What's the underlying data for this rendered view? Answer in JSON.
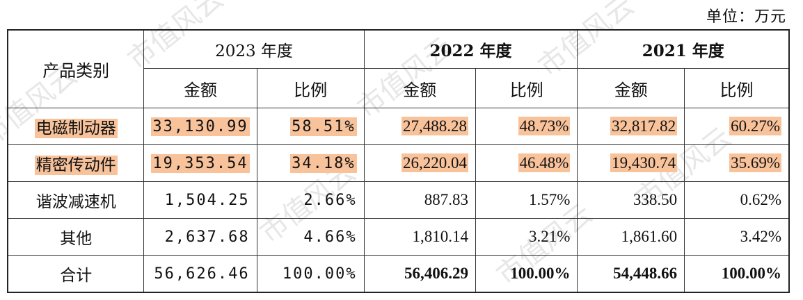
{
  "unit_label": "单位：万元",
  "watermark": "市值风云",
  "headers": {
    "category": "产品类别",
    "years": [
      "2023 年度",
      "2022 年度",
      "2021 年度"
    ],
    "amount": "金额",
    "ratio": "比例"
  },
  "rows": [
    {
      "category": "电磁制动器",
      "y2023_amount": "33,130.99",
      "y2023_ratio": "58.51%",
      "y2022_amount": "27,488.28",
      "y2022_ratio": "48.73%",
      "y2021_amount": "32,817.82",
      "y2021_ratio": "60.27%"
    },
    {
      "category": "精密传动件",
      "y2023_amount": "19,353.54",
      "y2023_ratio": "34.18%",
      "y2022_amount": "26,220.04",
      "y2022_ratio": "46.48%",
      "y2021_amount": "19,430.74",
      "y2021_ratio": "35.69%"
    },
    {
      "category": "谐波减速机",
      "y2023_amount": "1,504.25",
      "y2023_ratio": "2.66%",
      "y2022_amount": "887.83",
      "y2022_ratio": "1.57%",
      "y2021_amount": "338.50",
      "y2021_ratio": "0.62%"
    },
    {
      "category": "其他",
      "y2023_amount": "2,637.68",
      "y2023_ratio": "4.66%",
      "y2022_amount": "1,810.14",
      "y2022_ratio": "3.21%",
      "y2021_amount": "1,861.60",
      "y2021_ratio": "3.42%"
    }
  ],
  "total": {
    "category": "合计",
    "y2023_amount": "56,626.46",
    "y2023_ratio": "100.00%",
    "y2022_amount": "56,406.29",
    "y2022_ratio": "100.00%",
    "y2021_amount": "54,448.66",
    "y2021_ratio": "100.00%"
  },
  "highlight_color": "#f8c29b"
}
